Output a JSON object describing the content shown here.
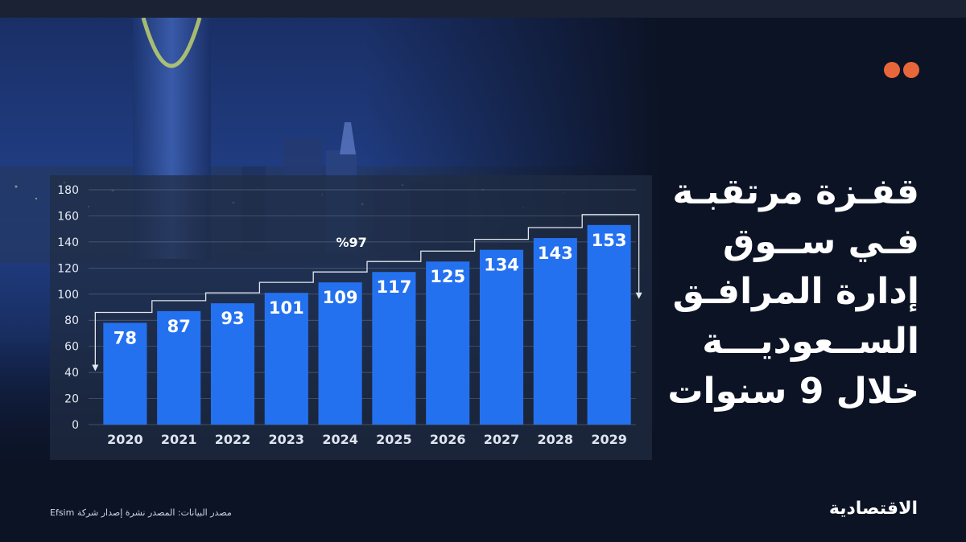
{
  "headline": {
    "line1": "قفـزة مرتقبـة",
    "line2": "فـي ســوق",
    "line3": "إدارة المرافـق",
    "line4": "الســعوديـــة",
    "line5": "خلال 9 سنوات"
  },
  "source_note": "مصدر البيانات: المصدر نشرة إصدار شركة Efsim",
  "brand": "الاقتصادية",
  "colors": {
    "bar": "#2471f0",
    "background": "#0c1325",
    "dot": "#e8673a",
    "grid": "#8a96ab"
  },
  "chart_data": {
    "type": "bar",
    "title": "",
    "xlabel": "",
    "ylabel": "",
    "categories": [
      "2020",
      "2021",
      "2022",
      "2023",
      "2024",
      "2025",
      "2026",
      "2027",
      "2028",
      "2029"
    ],
    "values": [
      78,
      87,
      93,
      101,
      109,
      117,
      125,
      134,
      143,
      153
    ],
    "ylim": [
      0,
      180
    ],
    "yticks": [
      0,
      20,
      40,
      60,
      80,
      100,
      120,
      140,
      160,
      180
    ],
    "grid": true,
    "growth_annotation": "%97",
    "data_labels": true
  }
}
